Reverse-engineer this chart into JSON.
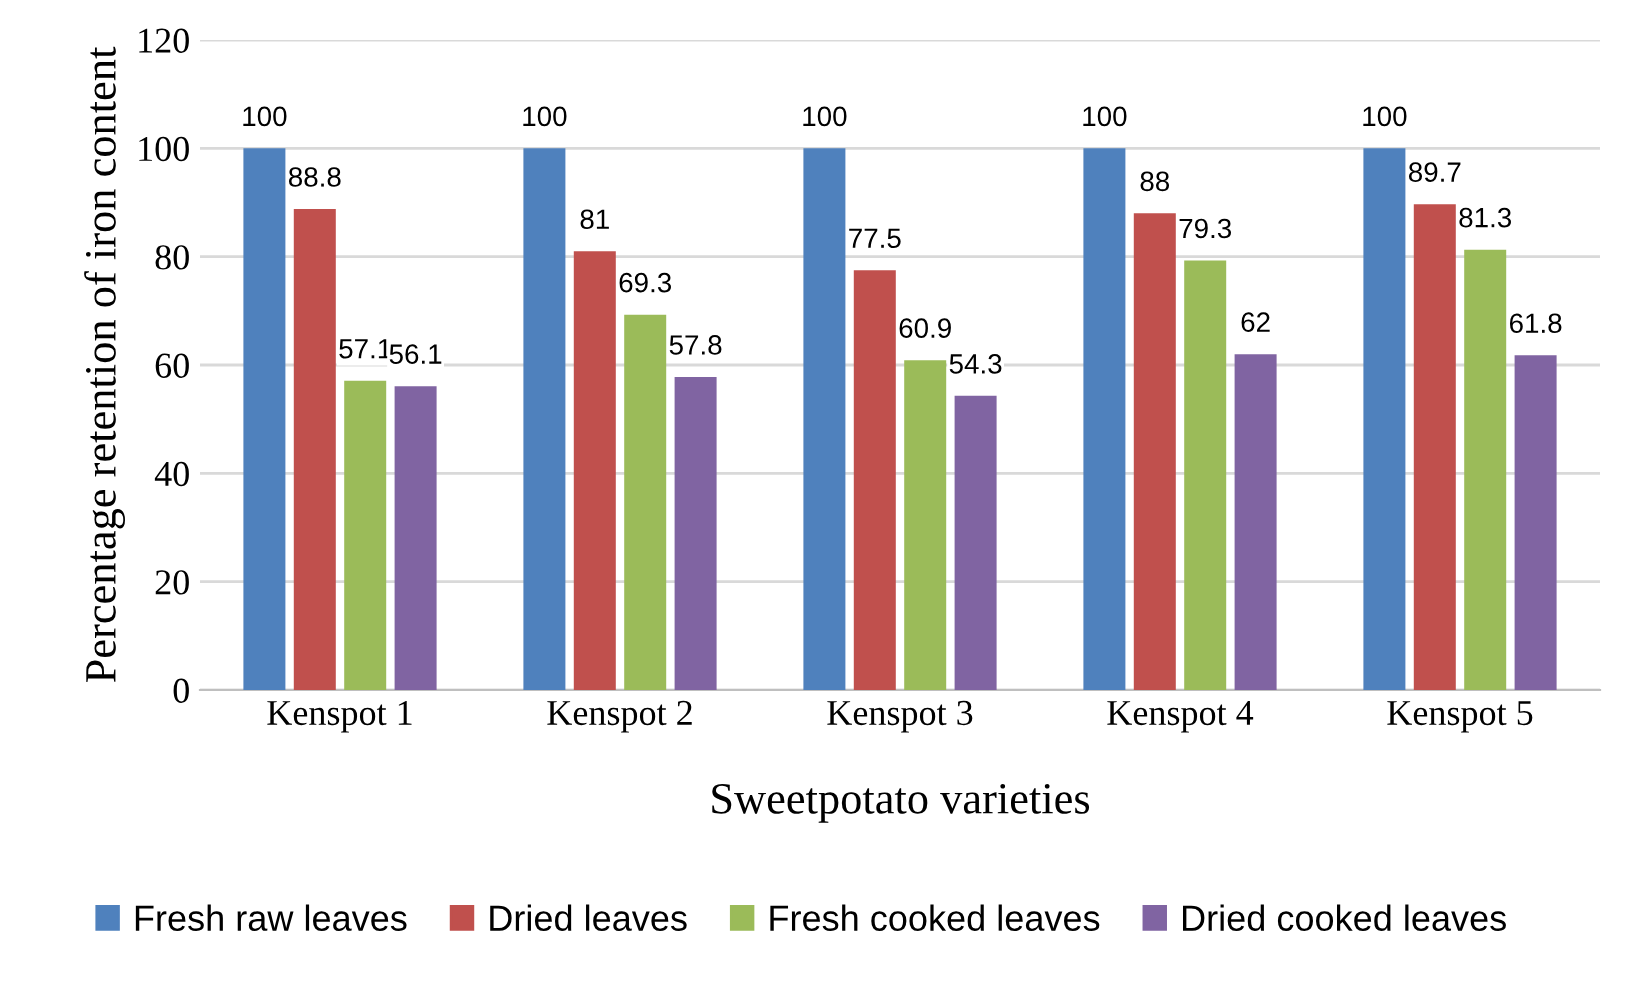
{
  "chart_data": {
    "type": "bar",
    "xlabel": "Sweetpotato varieties",
    "ylabel": "Percentage retention of iron content",
    "categories": [
      "Kenspot 1",
      "Kenspot 2",
      "Kenspot 3",
      "Kenspot 4",
      "Kenspot 5"
    ],
    "series": [
      {
        "name": "Fresh raw leaves",
        "color": "#4f81bd",
        "values": [
          100,
          100,
          100,
          100,
          100
        ]
      },
      {
        "name": "Dried leaves",
        "color": "#c0504d",
        "values": [
          88.8,
          81,
          77.5,
          88,
          89.7
        ]
      },
      {
        "name": "Fresh cooked leaves",
        "color": "#9bbb59",
        "values": [
          57.1,
          69.3,
          60.9,
          79.3,
          81.3
        ]
      },
      {
        "name": "Dried cooked leaves",
        "color": "#8064a2",
        "values": [
          56.1,
          57.8,
          54.3,
          62,
          61.8
        ]
      }
    ],
    "ylim": [
      0,
      120
    ],
    "yticks": [
      0,
      20,
      40,
      60,
      80,
      100,
      120
    ],
    "grid": "y",
    "legend": "bottom",
    "data_labels": true
  }
}
